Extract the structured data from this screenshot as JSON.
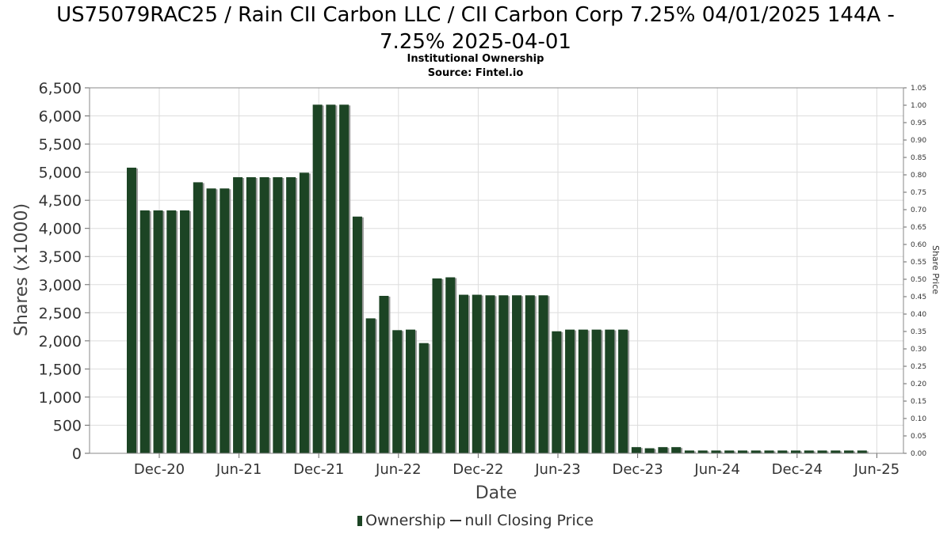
{
  "title": {
    "line1": "US75079RAC25 / Rain CII Carbon LLC / CII Carbon Corp 7.25% 04/01/2025 144A -",
    "line2": "7.25% 2025-04-01"
  },
  "subtitle": "Institutional Ownership",
  "source": "Source: Fintel.io",
  "legend": {
    "ownership": "Ownership",
    "closing": "null Closing Price"
  },
  "colors": {
    "bar": "#1c4424",
    "bar_shadow": "#9a9a9a",
    "grid": "#dddddd"
  },
  "chart_data": {
    "type": "bar",
    "xlabel": "Date",
    "ylabel": "Shares (x1000)",
    "ylabel_right": "Share Price",
    "ylim": [
      0,
      6500
    ],
    "ylim_right": [
      0,
      1.05
    ],
    "y_ticks": [
      "0",
      "500",
      "1,000",
      "1,500",
      "2,000",
      "2,500",
      "3,000",
      "3,500",
      "4,000",
      "4,500",
      "5,000",
      "5,500",
      "6,000",
      "6,500"
    ],
    "y_right_ticks": [
      "0.00",
      "0.05",
      "0.10",
      "0.15",
      "0.20",
      "0.25",
      "0.30",
      "0.35",
      "0.40",
      "0.45",
      "0.50",
      "0.55",
      "0.60",
      "0.65",
      "0.70",
      "0.75",
      "0.80",
      "0.85",
      "0.90",
      "0.95",
      "1.00",
      "1.05"
    ],
    "x_tick_labels": [
      "Dec-20",
      "Jun-21",
      "Dec-21",
      "Jun-22",
      "Dec-22",
      "Jun-23",
      "Dec-23",
      "Jun-24",
      "Dec-24",
      "Jun-25"
    ],
    "grid": true,
    "legend_position": "bottom",
    "series": [
      {
        "name": "Ownership",
        "values": [
          5080,
          4320,
          4320,
          4320,
          4320,
          4820,
          4710,
          4710,
          4910,
          4910,
          4910,
          4910,
          4910,
          4990,
          6200,
          6200,
          6200,
          4210,
          2400,
          2800,
          2190,
          2200,
          1960,
          3110,
          3130,
          2820,
          2820,
          2810,
          2810,
          2810,
          2810,
          2810,
          2170,
          2200,
          2200,
          2200,
          2200,
          2200,
          110,
          90,
          110,
          110,
          50,
          50,
          50,
          50,
          50,
          50,
          50,
          50,
          50,
          50,
          50,
          50,
          50,
          50
        ]
      }
    ]
  }
}
